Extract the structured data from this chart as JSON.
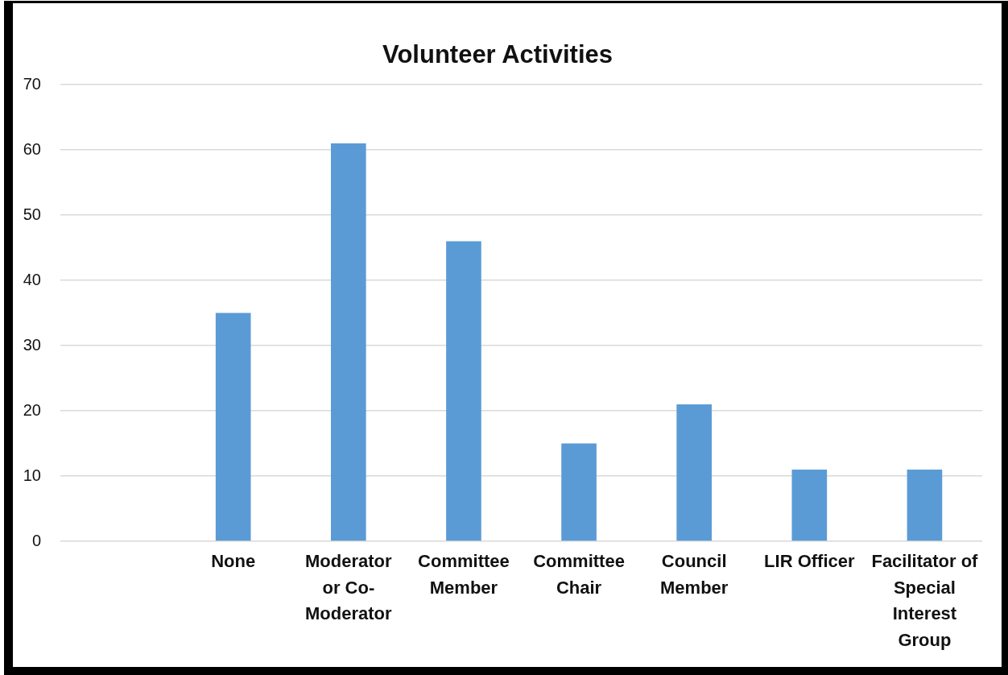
{
  "chart_data": {
    "type": "bar",
    "title": "Volunteer Activities",
    "categories": [
      null,
      "None",
      "Moderator or Co-Moderator",
      "Committee Member",
      "Committee Chair",
      "Council Member",
      "LIR Officer",
      "Facilitator of Special Interest Group"
    ],
    "values": [
      null,
      35,
      61,
      46,
      15,
      21,
      11,
      11
    ],
    "color": "#5b9bd5",
    "ylim": [
      0,
      70
    ],
    "yticks": [
      0,
      10,
      20,
      30,
      40,
      50,
      60,
      70
    ],
    "grid": "y"
  }
}
